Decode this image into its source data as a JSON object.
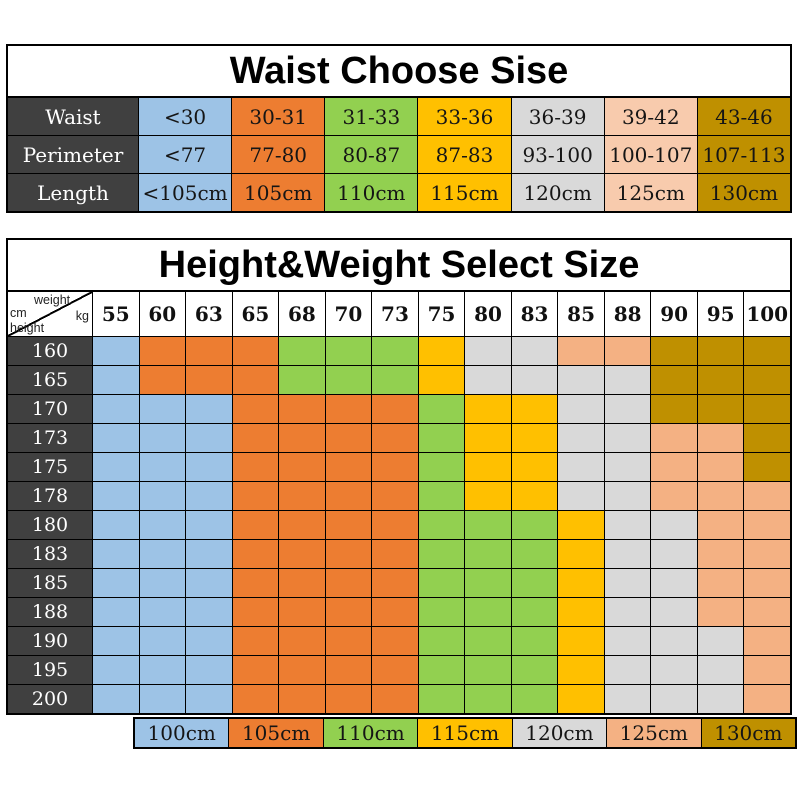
{
  "palette": {
    "blue": "#9DC3E6",
    "orange": "#ED7D31",
    "green": "#92D050",
    "yellow": "#FFC000",
    "gray": "#D9D9D9",
    "peach": "#F4B183",
    "peach_light": "#F8CBAD",
    "gold": "#BF9000",
    "label_bg": "#404040",
    "label_text": "#FFFFFF",
    "grid_line": "#000000"
  },
  "chart_data": [
    {
      "type": "table",
      "title": "Waist Choose Sise",
      "row_headers": [
        "Waist",
        "Perimeter",
        "Length"
      ],
      "rows": [
        [
          "<30",
          "30-31",
          "31-33",
          "33-36",
          "36-39",
          "39-42",
          "43-46"
        ],
        [
          "<77",
          "77-80",
          "80-87",
          "87-83",
          "93-100",
          "100-107",
          "107-113"
        ],
        [
          "<105cm",
          "105cm",
          "110cm",
          "115cm",
          "120cm",
          "125cm",
          "130cm"
        ]
      ],
      "column_colors": [
        "blue",
        "orange",
        "green",
        "yellow",
        "gray",
        "peach_light",
        "gold"
      ]
    },
    {
      "type": "heatmap",
      "title": "Height&Weight Select Size",
      "corner_labels": {
        "top": "weight",
        "right": "kg",
        "left": "cm",
        "bottom": "height"
      },
      "weights": [
        "55",
        "60",
        "63",
        "65",
        "68",
        "70",
        "73",
        "75",
        "80",
        "83",
        "85",
        "88",
        "90",
        "95",
        "100"
      ],
      "heights": [
        "160",
        "165",
        "170",
        "173",
        "175",
        "178",
        "180",
        "183",
        "185",
        "188",
        "190",
        "195",
        "200"
      ],
      "size_by_color": {
        "blue": "100cm",
        "orange": "105cm",
        "green": "110cm",
        "yellow": "115cm",
        "gray": "120cm",
        "peach": "125cm",
        "gold": "130cm"
      },
      "grid": [
        [
          "blue",
          "orange",
          "orange",
          "orange",
          "green",
          "green",
          "green",
          "yellow",
          "gray",
          "gray",
          "peach",
          "peach",
          "gold",
          "gold",
          "gold"
        ],
        [
          "blue",
          "orange",
          "orange",
          "orange",
          "green",
          "green",
          "green",
          "yellow",
          "gray",
          "gray",
          "gray",
          "gray",
          "gold",
          "gold",
          "gold"
        ],
        [
          "blue",
          "blue",
          "blue",
          "orange",
          "orange",
          "orange",
          "orange",
          "green",
          "yellow",
          "yellow",
          "gray",
          "gray",
          "gold",
          "gold",
          "gold"
        ],
        [
          "blue",
          "blue",
          "blue",
          "orange",
          "orange",
          "orange",
          "orange",
          "green",
          "yellow",
          "yellow",
          "gray",
          "gray",
          "peach",
          "peach",
          "gold"
        ],
        [
          "blue",
          "blue",
          "blue",
          "orange",
          "orange",
          "orange",
          "orange",
          "green",
          "yellow",
          "yellow",
          "gray",
          "gray",
          "peach",
          "peach",
          "gold"
        ],
        [
          "blue",
          "blue",
          "blue",
          "orange",
          "orange",
          "orange",
          "orange",
          "green",
          "yellow",
          "yellow",
          "gray",
          "gray",
          "peach",
          "peach",
          "peach"
        ],
        [
          "blue",
          "blue",
          "blue",
          "orange",
          "orange",
          "orange",
          "orange",
          "green",
          "green",
          "green",
          "yellow",
          "gray",
          "gray",
          "peach",
          "peach"
        ],
        [
          "blue",
          "blue",
          "blue",
          "orange",
          "orange",
          "orange",
          "orange",
          "green",
          "green",
          "green",
          "yellow",
          "gray",
          "gray",
          "peach",
          "peach"
        ],
        [
          "blue",
          "blue",
          "blue",
          "orange",
          "orange",
          "orange",
          "orange",
          "green",
          "green",
          "green",
          "yellow",
          "gray",
          "gray",
          "peach",
          "peach"
        ],
        [
          "blue",
          "blue",
          "blue",
          "orange",
          "orange",
          "orange",
          "orange",
          "green",
          "green",
          "green",
          "yellow",
          "gray",
          "gray",
          "peach",
          "peach"
        ],
        [
          "blue",
          "blue",
          "blue",
          "orange",
          "orange",
          "orange",
          "orange",
          "green",
          "green",
          "green",
          "yellow",
          "gray",
          "gray",
          "gray",
          "peach"
        ],
        [
          "blue",
          "blue",
          "blue",
          "orange",
          "orange",
          "orange",
          "orange",
          "green",
          "green",
          "green",
          "yellow",
          "gray",
          "gray",
          "gray",
          "peach"
        ],
        [
          "blue",
          "blue",
          "blue",
          "orange",
          "orange",
          "orange",
          "orange",
          "green",
          "green",
          "green",
          "yellow",
          "gray",
          "gray",
          "gray",
          "peach"
        ]
      ]
    },
    {
      "type": "legend",
      "items": [
        {
          "label": "100cm",
          "color": "blue"
        },
        {
          "label": "105cm",
          "color": "orange"
        },
        {
          "label": "110cm",
          "color": "green"
        },
        {
          "label": "115cm",
          "color": "yellow"
        },
        {
          "label": "120cm",
          "color": "gray"
        },
        {
          "label": "125cm",
          "color": "peach"
        },
        {
          "label": "130cm",
          "color": "gold"
        }
      ]
    }
  ]
}
